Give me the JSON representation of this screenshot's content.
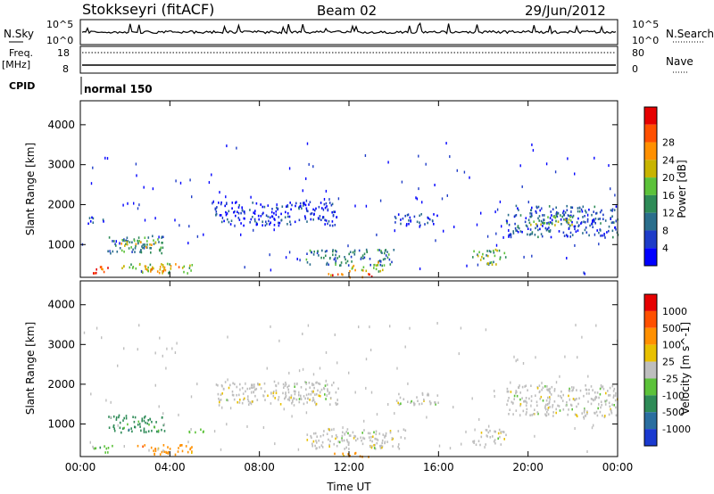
{
  "header": {
    "station": "Stokkseyri (fitACF)",
    "beam": "Beam 02",
    "date": "29/Jun/2012"
  },
  "top_panels": {
    "nsky_label": "N.Sky",
    "nsky_ticks": [
      "10^5",
      "10^0"
    ],
    "nsearch_label": "N.Search",
    "nsearch_ticks": [
      "10^5",
      "10^0"
    ],
    "freq_label": "Freq.",
    "freq_unit": "[MHz]",
    "freq_ticks": [
      "18",
      "8"
    ],
    "nave_label": "Nave",
    "nave_ticks": [
      "80",
      "0"
    ],
    "cpid_label": "CPID",
    "cpid_text": "normal 150"
  },
  "colors": {
    "power": [
      "#0000ff",
      "#1e3cc8",
      "#2a6e8c",
      "#2e8b57",
      "#5cc23a",
      "#c8b400",
      "#ff9000",
      "#ff5000",
      "#e60000"
    ],
    "velocity": [
      "#1a3ad0",
      "#2a6ea0",
      "#2e8b57",
      "#5cc23a",
      "#bebebe",
      "#e8c000",
      "#ff9000",
      "#ff5000",
      "#e60000"
    ]
  },
  "chart_data": [
    {
      "type": "heatmap",
      "name": "power",
      "ylabel": "Slant Range [km]",
      "xlabel": "",
      "x_ticks": [
        "00:00",
        "04:00",
        "08:00",
        "12:00",
        "16:00",
        "20:00",
        "00:00"
      ],
      "x_hours": [
        0,
        4,
        8,
        12,
        16,
        20,
        24
      ],
      "y_ticks": [
        1000,
        2000,
        3000,
        4000
      ],
      "ylim": [
        180,
        4600
      ],
      "colorbar_label": "Power [dB]",
      "colorbar_ticks": [
        "4",
        "8",
        "12",
        "16",
        "20",
        "24",
        "28"
      ],
      "regions": [
        {
          "t0": 0.3,
          "t1": 1.2,
          "r0": 1550,
          "r1": 1720,
          "level": 0.15
        },
        {
          "t0": 1.2,
          "t1": 3.8,
          "r0": 800,
          "r1": 1250,
          "level": 0.35
        },
        {
          "t0": 1.8,
          "t1": 3.4,
          "r0": 950,
          "r1": 1150,
          "level": 0.6
        },
        {
          "t0": 0.5,
          "t1": 1.4,
          "r0": 300,
          "r1": 500,
          "level": 0.9
        },
        {
          "t0": 1.8,
          "t1": 5.0,
          "r0": 300,
          "r1": 550,
          "level": 0.55
        },
        {
          "t0": 3.0,
          "t1": 4.6,
          "r0": 350,
          "r1": 500,
          "level": 0.75
        },
        {
          "t0": 6.0,
          "t1": 11.5,
          "r0": 1500,
          "r1": 2100,
          "level": 0.12
        },
        {
          "t0": 10.0,
          "t1": 14.0,
          "r0": 500,
          "r1": 900,
          "level": 0.3
        },
        {
          "t0": 12.0,
          "t1": 13.5,
          "r0": 350,
          "r1": 600,
          "level": 0.6
        },
        {
          "t0": 14.0,
          "t1": 16.0,
          "r0": 1500,
          "r1": 1800,
          "level": 0.15
        },
        {
          "t0": 17.5,
          "t1": 19.0,
          "r0": 500,
          "r1": 900,
          "level": 0.45
        },
        {
          "t0": 19.0,
          "t1": 24.0,
          "r0": 1200,
          "r1": 2000,
          "level": 0.2
        },
        {
          "t0": 20.0,
          "t1": 22.0,
          "r0": 1500,
          "r1": 1750,
          "level": 0.5
        },
        {
          "t0": 11.0,
          "t1": 13.0,
          "r0": 200,
          "r1": 300,
          "level": 0.8
        }
      ]
    },
    {
      "type": "heatmap",
      "name": "velocity",
      "ylabel": "Slant Range [km]",
      "xlabel": "Time UT",
      "x_ticks": [
        "00:00",
        "04:00",
        "08:00",
        "12:00",
        "16:00",
        "20:00",
        "00:00"
      ],
      "x_hours": [
        0,
        4,
        8,
        12,
        16,
        20,
        24
      ],
      "y_ticks": [
        1000,
        2000,
        3000,
        4000
      ],
      "ylim": [
        180,
        4600
      ],
      "colorbar_label": "Velocity [m s^-1]",
      "colorbar_ticks": [
        "1000",
        "500",
        "100",
        "25",
        "-25",
        "-100",
        "-500",
        "-1000"
      ],
      "regions": [
        {
          "t0": 1.2,
          "t1": 3.8,
          "r0": 800,
          "r1": 1250,
          "level": 2
        },
        {
          "t0": 0.5,
          "t1": 1.4,
          "r0": 300,
          "r1": 500,
          "level": 3
        },
        {
          "t0": 2.5,
          "t1": 5.0,
          "r0": 250,
          "r1": 500,
          "level": 6
        },
        {
          "t0": 6.0,
          "t1": 11.5,
          "r0": 1500,
          "r1": 2100,
          "level": 4
        },
        {
          "t0": 10.0,
          "t1": 14.5,
          "r0": 400,
          "r1": 900,
          "level": 4
        },
        {
          "t0": 11.0,
          "t1": 13.0,
          "r0": 200,
          "r1": 300,
          "level": 6
        },
        {
          "t0": 14.0,
          "t1": 16.0,
          "r0": 1500,
          "r1": 1800,
          "level": 4
        },
        {
          "t0": 17.5,
          "t1": 19.0,
          "r0": 500,
          "r1": 900,
          "level": 4
        },
        {
          "t0": 19.0,
          "t1": 24.0,
          "r0": 1200,
          "r1": 2000,
          "level": 4
        },
        {
          "t0": 4.5,
          "t1": 5.5,
          "r0": 800,
          "r1": 900,
          "level": 3
        }
      ]
    }
  ]
}
